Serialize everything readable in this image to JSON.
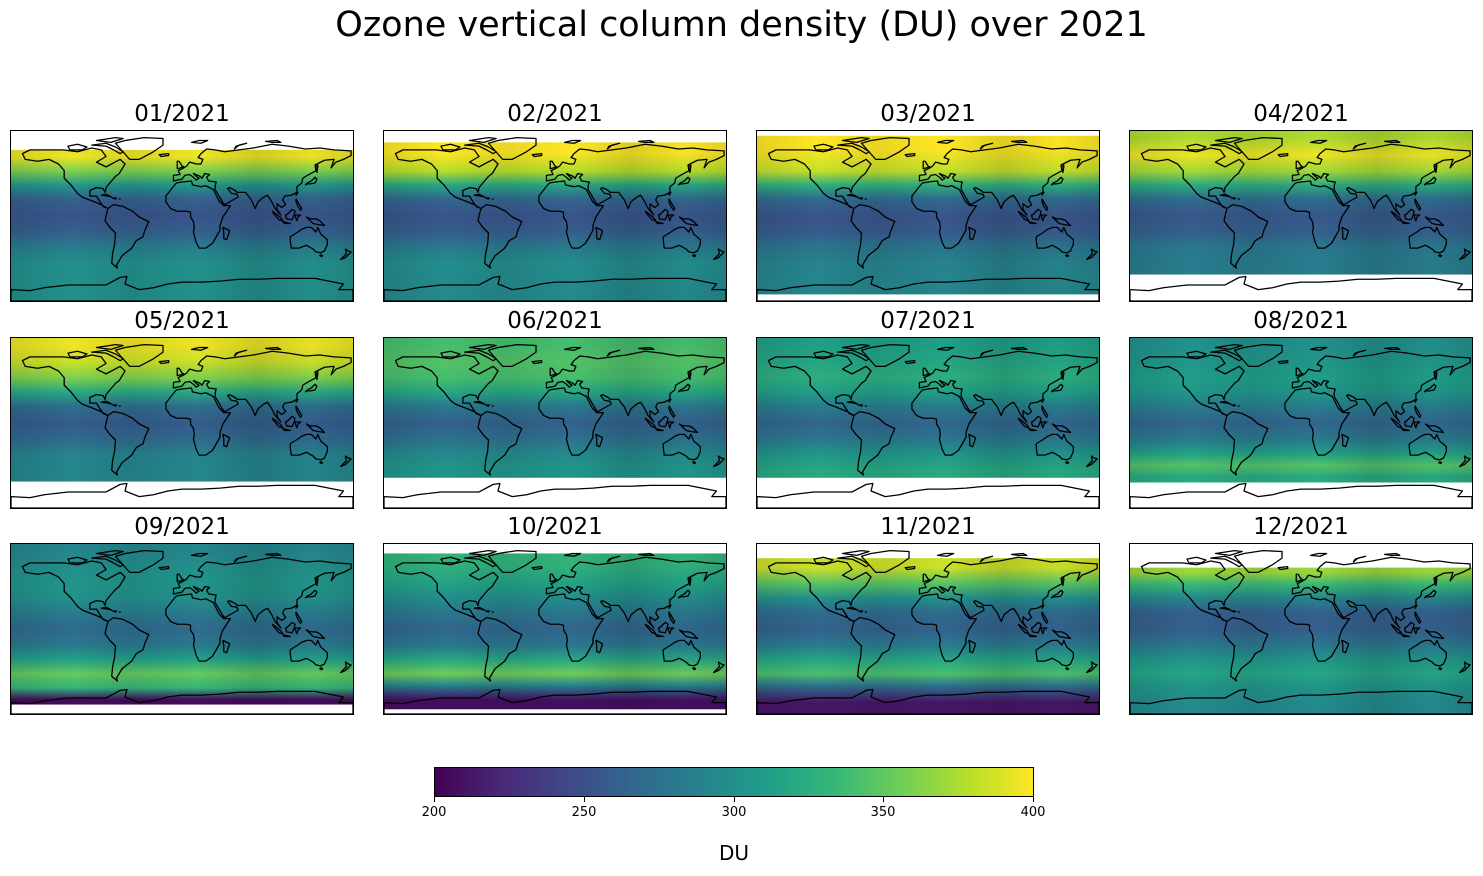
{
  "chart_data": {
    "type": "heatmap",
    "title": "Ozone vertical column density (DU) over 2021",
    "colormap": "viridis",
    "colorbar": {
      "label": "DU",
      "range": [
        200,
        400
      ],
      "ticks": [
        "200",
        "250",
        "300",
        "350",
        "400"
      ]
    },
    "panels": [
      {
        "title": "01/2021",
        "lat_range": [
          -90,
          70
        ],
        "bands": [
          [
            -90,
            -60,
            300
          ],
          [
            -60,
            -40,
            300
          ],
          [
            -40,
            -25,
            285
          ],
          [
            -25,
            -10,
            262
          ],
          [
            -10,
            10,
            252
          ],
          [
            10,
            25,
            262
          ],
          [
            25,
            40,
            305
          ],
          [
            40,
            55,
            360
          ],
          [
            55,
            70,
            395
          ]
        ]
      },
      {
        "title": "02/2021",
        "lat_range": [
          -90,
          78
        ],
        "bands": [
          [
            -90,
            -60,
            295
          ],
          [
            -60,
            -40,
            298
          ],
          [
            -40,
            -25,
            282
          ],
          [
            -25,
            -10,
            260
          ],
          [
            -10,
            10,
            252
          ],
          [
            10,
            25,
            265
          ],
          [
            25,
            40,
            318
          ],
          [
            40,
            55,
            378
          ],
          [
            55,
            78,
            400
          ]
        ]
      },
      {
        "title": "03/2021",
        "lat_range": [
          -83,
          85
        ],
        "bands": [
          [
            -83,
            -60,
            292
          ],
          [
            -60,
            -40,
            290
          ],
          [
            -40,
            -25,
            278
          ],
          [
            -25,
            -10,
            258
          ],
          [
            -10,
            10,
            252
          ],
          [
            10,
            25,
            268
          ],
          [
            25,
            40,
            325
          ],
          [
            40,
            55,
            382
          ],
          [
            55,
            85,
            400
          ]
        ]
      },
      {
        "title": "04/2021",
        "lat_range": [
          -62,
          90
        ],
        "bands": [
          [
            -62,
            -40,
            285
          ],
          [
            -40,
            -25,
            280
          ],
          [
            -25,
            -10,
            262
          ],
          [
            -10,
            10,
            255
          ],
          [
            10,
            25,
            270
          ],
          [
            25,
            40,
            322
          ],
          [
            40,
            55,
            372
          ],
          [
            55,
            75,
            395
          ],
          [
            75,
            90,
            375
          ]
        ]
      },
      {
        "title": "05/2021",
        "lat_range": [
          -62,
          90
        ],
        "bands": [
          [
            -62,
            -40,
            292
          ],
          [
            -40,
            -25,
            290
          ],
          [
            -25,
            -10,
            268
          ],
          [
            -10,
            10,
            258
          ],
          [
            10,
            25,
            272
          ],
          [
            25,
            40,
            320
          ],
          [
            40,
            55,
            360
          ],
          [
            55,
            75,
            385
          ],
          [
            75,
            90,
            395
          ]
        ]
      },
      {
        "title": "06/2021",
        "lat_range": [
          -58,
          90
        ],
        "bands": [
          [
            -58,
            -40,
            305
          ],
          [
            -40,
            -25,
            295
          ],
          [
            -25,
            -10,
            275
          ],
          [
            -10,
            10,
            262
          ],
          [
            10,
            25,
            280
          ],
          [
            25,
            40,
            318
          ],
          [
            40,
            55,
            340
          ],
          [
            55,
            75,
            345
          ],
          [
            75,
            90,
            340
          ]
        ]
      },
      {
        "title": "07/2021",
        "lat_range": [
          -58,
          90
        ],
        "bands": [
          [
            -58,
            -40,
            320
          ],
          [
            -40,
            -25,
            305
          ],
          [
            -25,
            -10,
            280
          ],
          [
            -10,
            10,
            265
          ],
          [
            10,
            25,
            285
          ],
          [
            25,
            40,
            312
          ],
          [
            40,
            55,
            325
          ],
          [
            55,
            75,
            318
          ],
          [
            75,
            90,
            312
          ]
        ]
      },
      {
        "title": "08/2021",
        "lat_range": [
          -63,
          90
        ],
        "bands": [
          [
            -63,
            -50,
            322
          ],
          [
            -50,
            -40,
            345
          ],
          [
            -40,
            -25,
            315
          ],
          [
            -25,
            -10,
            282
          ],
          [
            -10,
            10,
            265
          ],
          [
            10,
            25,
            285
          ],
          [
            25,
            40,
            305
          ],
          [
            40,
            55,
            312
          ],
          [
            55,
            75,
            305
          ],
          [
            75,
            90,
            300
          ]
        ]
      },
      {
        "title": "09/2021",
        "lat_range": [
          -80,
          90
        ],
        "bands": [
          [
            -80,
            -70,
            205
          ],
          [
            -70,
            -55,
            330
          ],
          [
            -55,
            -40,
            352
          ],
          [
            -40,
            -25,
            315
          ],
          [
            -25,
            -10,
            282
          ],
          [
            -10,
            10,
            268
          ],
          [
            10,
            25,
            285
          ],
          [
            25,
            40,
            300
          ],
          [
            40,
            55,
            305
          ],
          [
            55,
            75,
            300
          ],
          [
            75,
            90,
            292
          ]
        ]
      },
      {
        "title": "10/2021",
        "lat_range": [
          -85,
          80
        ],
        "bands": [
          [
            -85,
            -65,
            208
          ],
          [
            -65,
            -55,
            288
          ],
          [
            -55,
            -40,
            355
          ],
          [
            -40,
            -25,
            320
          ],
          [
            -25,
            -10,
            280
          ],
          [
            -10,
            10,
            265
          ],
          [
            10,
            25,
            280
          ],
          [
            25,
            40,
            298
          ],
          [
            40,
            55,
            315
          ],
          [
            55,
            80,
            330
          ]
        ]
      },
      {
        "title": "11/2021",
        "lat_range": [
          -90,
          75
        ],
        "bands": [
          [
            -90,
            -65,
            212
          ],
          [
            -65,
            -55,
            275
          ],
          [
            -55,
            -40,
            342
          ],
          [
            -40,
            -25,
            318
          ],
          [
            -25,
            -10,
            285
          ],
          [
            -10,
            10,
            262
          ],
          [
            10,
            25,
            270
          ],
          [
            25,
            40,
            300
          ],
          [
            40,
            55,
            345
          ],
          [
            55,
            75,
            385
          ]
        ]
      },
      {
        "title": "12/2021",
        "lat_range": [
          -90,
          65
        ],
        "bands": [
          [
            -90,
            -65,
            295
          ],
          [
            -65,
            -55,
            305
          ],
          [
            -55,
            -40,
            318
          ],
          [
            -40,
            -25,
            305
          ],
          [
            -25,
            -10,
            280
          ],
          [
            -10,
            10,
            260
          ],
          [
            10,
            25,
            262
          ],
          [
            25,
            40,
            292
          ],
          [
            40,
            55,
            335
          ],
          [
            55,
            65,
            370
          ]
        ]
      }
    ]
  }
}
